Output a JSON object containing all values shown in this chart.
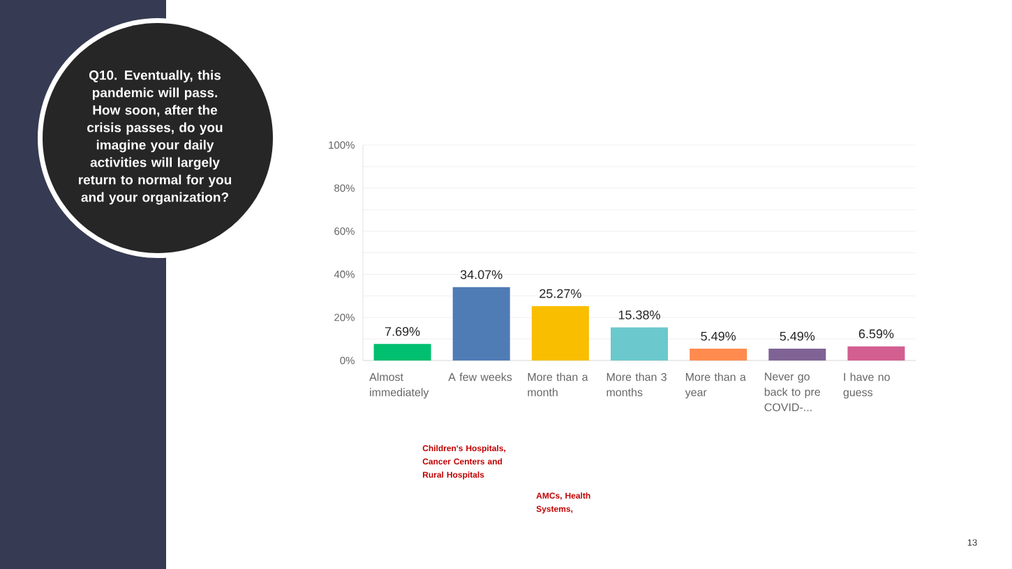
{
  "chart_data": {
    "type": "bar",
    "title": "Q10. Eventually, this pandemic will pass. How soon, after the crisis passes, do you imagine your daily activities will largely return to normal for you and your organization?",
    "categories": [
      "Almost immediately",
      "A few weeks",
      "More than a month",
      "More than 3 months",
      "More than a year",
      "Never go back to pre COVID-...",
      "I have no guess"
    ],
    "values": [
      7.69,
      34.07,
      25.27,
      15.38,
      5.49,
      5.49,
      6.59
    ],
    "value_labels": [
      "7.69%",
      "34.07%",
      "25.27%",
      "15.38%",
      "5.49%",
      "5.49%",
      "6.59%"
    ],
    "colors": [
      "#00bf6f",
      "#507cb6",
      "#f9be00",
      "#6bc8cd",
      "#ff8b4f",
      "#7f6395",
      "#d25f90"
    ],
    "ylim": [
      0,
      100
    ],
    "yticks": [
      {
        "value": 0,
        "label": "0%"
      },
      {
        "value": 10,
        "label": null
      },
      {
        "value": 20,
        "label": "20%"
      },
      {
        "value": 30,
        "label": null
      },
      {
        "value": 40,
        "label": "40%"
      },
      {
        "value": 50,
        "label": null
      },
      {
        "value": 60,
        "label": "60%"
      },
      {
        "value": 70,
        "label": null
      },
      {
        "value": 80,
        "label": "80%"
      },
      {
        "value": 90,
        "label": null
      },
      {
        "value": 100,
        "label": "100%"
      }
    ],
    "grid": "y",
    "annotations": [
      "Children's Hospitals, Cancer Centers and Rural Hospitals",
      "AMCs, Health Systems,",
      "13"
    ]
  }
}
